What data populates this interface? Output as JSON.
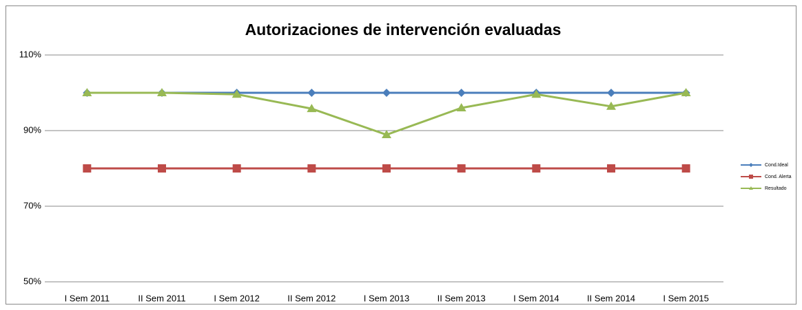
{
  "chart_data": {
    "type": "line",
    "title": "Autorizaciones de intervención evaluadas",
    "categories": [
      "I Sem 2011",
      "II Sem 2011",
      "I Sem 2012",
      "II Sem 2012",
      "I Sem 2013",
      "II Sem 2013",
      "I Sem 2014",
      "II Sem 2014",
      "I Sem 2015"
    ],
    "series": [
      {
        "name": "Cond.Ideal",
        "color": "#4a7ebb",
        "marker": "diamond",
        "values": [
          100,
          100,
          100,
          100,
          100,
          100,
          100,
          100,
          100
        ]
      },
      {
        "name": "Cond. Alerta",
        "color": "#be4b48",
        "marker": "square",
        "values": [
          80,
          80,
          80,
          80,
          80,
          80,
          80,
          80,
          80
        ]
      },
      {
        "name": "Resultado",
        "color": "#98b954",
        "marker": "triangle",
        "values": [
          100,
          100,
          99.6,
          95.8,
          88.9,
          96,
          99.6,
          96.4,
          100
        ]
      }
    ],
    "ylim": [
      50,
      110
    ],
    "yticks": [
      {
        "value": 50,
        "label": "50%"
      },
      {
        "value": 70,
        "label": "70%"
      },
      {
        "value": 90,
        "label": "90%"
      },
      {
        "value": 110,
        "label": "110%"
      }
    ],
    "grid": true,
    "legend": "right"
  }
}
